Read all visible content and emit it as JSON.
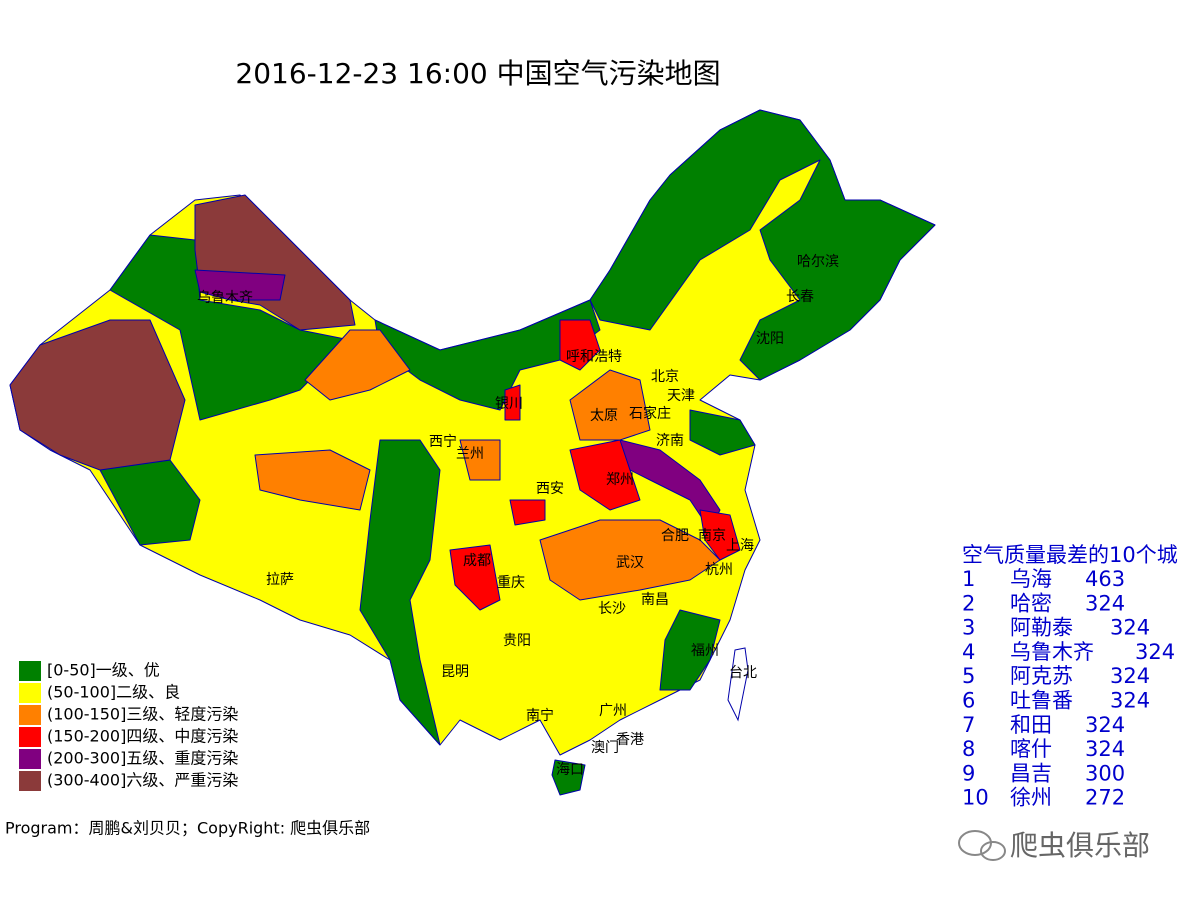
{
  "title": "2016-12-23 16:00 中国空气污染地图",
  "cities": [
    "乌鲁木齐",
    "哈尔滨",
    "长春",
    "沈阳",
    "呼和浩特",
    "北京",
    "天津",
    "银川",
    "太原",
    "石家庄",
    "西宁",
    "兰州",
    "济南",
    "西安",
    "郑州",
    "合肥",
    "南京",
    "上海",
    "成都",
    "武汉",
    "杭州",
    "拉萨",
    "重庆",
    "南昌",
    "长沙",
    "贵阳",
    "福州",
    "昆明",
    "台北",
    "南宁",
    "广州",
    "香港",
    "澳门",
    "海口"
  ],
  "legend": [
    {
      "label": "[0-50]一级、优",
      "color": "#008000"
    },
    {
      "label": "(50-100]二级、良",
      "color": "#ffff00"
    },
    {
      "label": "(100-150]三级、轻度污染",
      "color": "#ff8000"
    },
    {
      "label": "(150-200]四级、中度污染",
      "color": "#ff0000"
    },
    {
      "label": "(200-300]五级、重度污染",
      "color": "#800080"
    },
    {
      "label": "(300-400]六级、严重污染",
      "color": "#8b3a3a"
    }
  ],
  "ranking": {
    "title": "空气质量最差的10个城",
    "rows": [
      {
        "rank": 1,
        "city": "乌海",
        "aqi": 463
      },
      {
        "rank": 2,
        "city": "哈密",
        "aqi": 324
      },
      {
        "rank": 3,
        "city": "阿勒泰",
        "aqi": 324
      },
      {
        "rank": 4,
        "city": "乌鲁木齐",
        "aqi": 324
      },
      {
        "rank": 5,
        "city": "阿克苏",
        "aqi": 324
      },
      {
        "rank": 6,
        "city": "吐鲁番",
        "aqi": 324
      },
      {
        "rank": 7,
        "city": "和田",
        "aqi": 324
      },
      {
        "rank": 8,
        "city": "喀什",
        "aqi": 324
      },
      {
        "rank": 9,
        "city": "昌吉",
        "aqi": 300
      },
      {
        "rank": 10,
        "city": "徐州",
        "aqi": 272
      }
    ]
  },
  "footer": "Program：周鹏&刘贝贝；CopyRight: 爬虫俱乐部",
  "watermark": "爬虫俱乐部"
}
